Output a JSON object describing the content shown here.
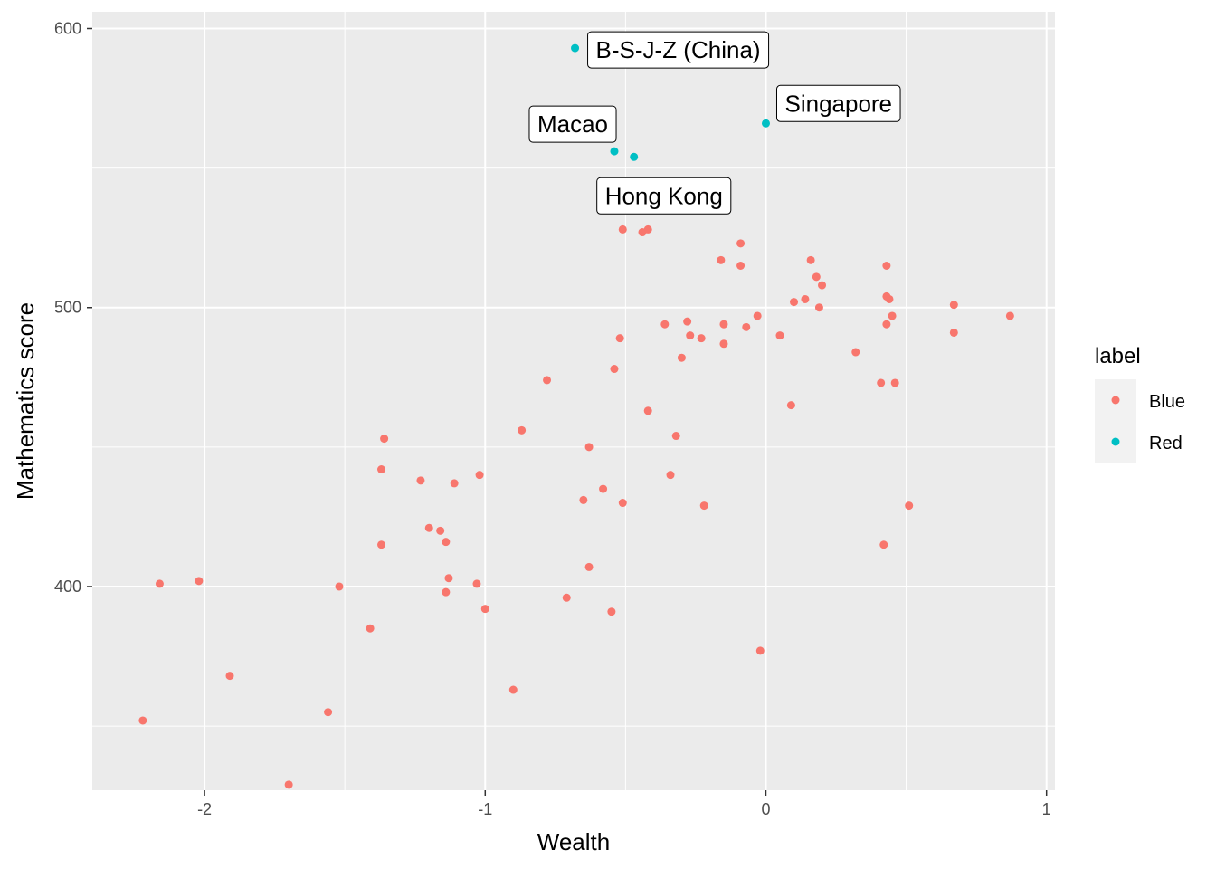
{
  "chart_data": {
    "type": "scatter",
    "xlabel": "Wealth",
    "ylabel": "Mathematics score",
    "xlim": [
      -2.4,
      1.03
    ],
    "ylim": [
      327,
      606
    ],
    "x_ticks": [
      -2,
      -1,
      0,
      1
    ],
    "y_ticks": [
      400,
      500,
      600
    ],
    "x_tick_labels": [
      "-2",
      "-1",
      "0",
      "1"
    ],
    "y_tick_labels": [
      "400",
      "500",
      "600"
    ],
    "grid": true,
    "legend": {
      "title": "label",
      "position": "right",
      "entries": [
        {
          "name": "Blue",
          "color": "#F8766D"
        },
        {
          "name": "Red",
          "color": "#00BFC4"
        }
      ]
    },
    "series": [
      {
        "name": "Blue",
        "color": "#F8766D",
        "points": [
          [
            -2.22,
            352
          ],
          [
            -2.16,
            401
          ],
          [
            -2.02,
            402
          ],
          [
            -1.91,
            368
          ],
          [
            -1.7,
            329
          ],
          [
            -1.56,
            355
          ],
          [
            -1.52,
            400
          ],
          [
            -1.41,
            385
          ],
          [
            -1.37,
            415
          ],
          [
            -1.37,
            442
          ],
          [
            -1.36,
            453
          ],
          [
            -1.23,
            438
          ],
          [
            -1.2,
            421
          ],
          [
            -1.16,
            420
          ],
          [
            -1.14,
            416
          ],
          [
            -1.14,
            398
          ],
          [
            -1.13,
            403
          ],
          [
            -1.11,
            437
          ],
          [
            -1.03,
            401
          ],
          [
            -1.02,
            440
          ],
          [
            -1.0,
            392
          ],
          [
            -0.9,
            363
          ],
          [
            -0.87,
            456
          ],
          [
            -0.78,
            474
          ],
          [
            -0.71,
            396
          ],
          [
            -0.65,
            431
          ],
          [
            -0.63,
            407
          ],
          [
            -0.63,
            450
          ],
          [
            -0.58,
            435
          ],
          [
            -0.55,
            391
          ],
          [
            -0.54,
            478
          ],
          [
            -0.52,
            489
          ],
          [
            -0.51,
            430
          ],
          [
            -0.51,
            528
          ],
          [
            -0.44,
            527
          ],
          [
            -0.42,
            528
          ],
          [
            -0.42,
            463
          ],
          [
            -0.36,
            494
          ],
          [
            -0.34,
            440
          ],
          [
            -0.32,
            454
          ],
          [
            -0.3,
            482
          ],
          [
            -0.28,
            495
          ],
          [
            -0.27,
            490
          ],
          [
            -0.23,
            489
          ],
          [
            -0.22,
            429
          ],
          [
            -0.16,
            517
          ],
          [
            -0.15,
            494
          ],
          [
            -0.15,
            487
          ],
          [
            -0.09,
            523
          ],
          [
            -0.09,
            515
          ],
          [
            -0.07,
            493
          ],
          [
            -0.03,
            497
          ],
          [
            -0.02,
            377
          ],
          [
            0.05,
            490
          ],
          [
            0.09,
            465
          ],
          [
            0.1,
            502
          ],
          [
            0.14,
            503
          ],
          [
            0.16,
            517
          ],
          [
            0.18,
            511
          ],
          [
            0.19,
            500
          ],
          [
            0.2,
            508
          ],
          [
            0.32,
            484
          ],
          [
            0.41,
            473
          ],
          [
            0.42,
            415
          ],
          [
            0.43,
            504
          ],
          [
            0.43,
            515
          ],
          [
            0.43,
            494
          ],
          [
            0.44,
            503
          ],
          [
            0.45,
            497
          ],
          [
            0.46,
            473
          ],
          [
            0.51,
            429
          ],
          [
            0.67,
            501
          ],
          [
            0.67,
            491
          ],
          [
            0.87,
            497
          ]
        ]
      },
      {
        "name": "Red",
        "color": "#00BFC4",
        "points": [
          [
            -0.68,
            593
          ],
          [
            -0.54,
            556
          ],
          [
            -0.47,
            554
          ],
          [
            0.0,
            566
          ]
        ]
      }
    ],
    "annotations": [
      {
        "text": "B-S-J-Z (China)",
        "x": -0.68,
        "y": 593
      },
      {
        "text": "Singapore",
        "x": 0.0,
        "y": 566
      },
      {
        "text": "Macao",
        "x": -0.54,
        "y": 556
      },
      {
        "text": "Hong Kong",
        "x": -0.47,
        "y": 554
      }
    ]
  }
}
